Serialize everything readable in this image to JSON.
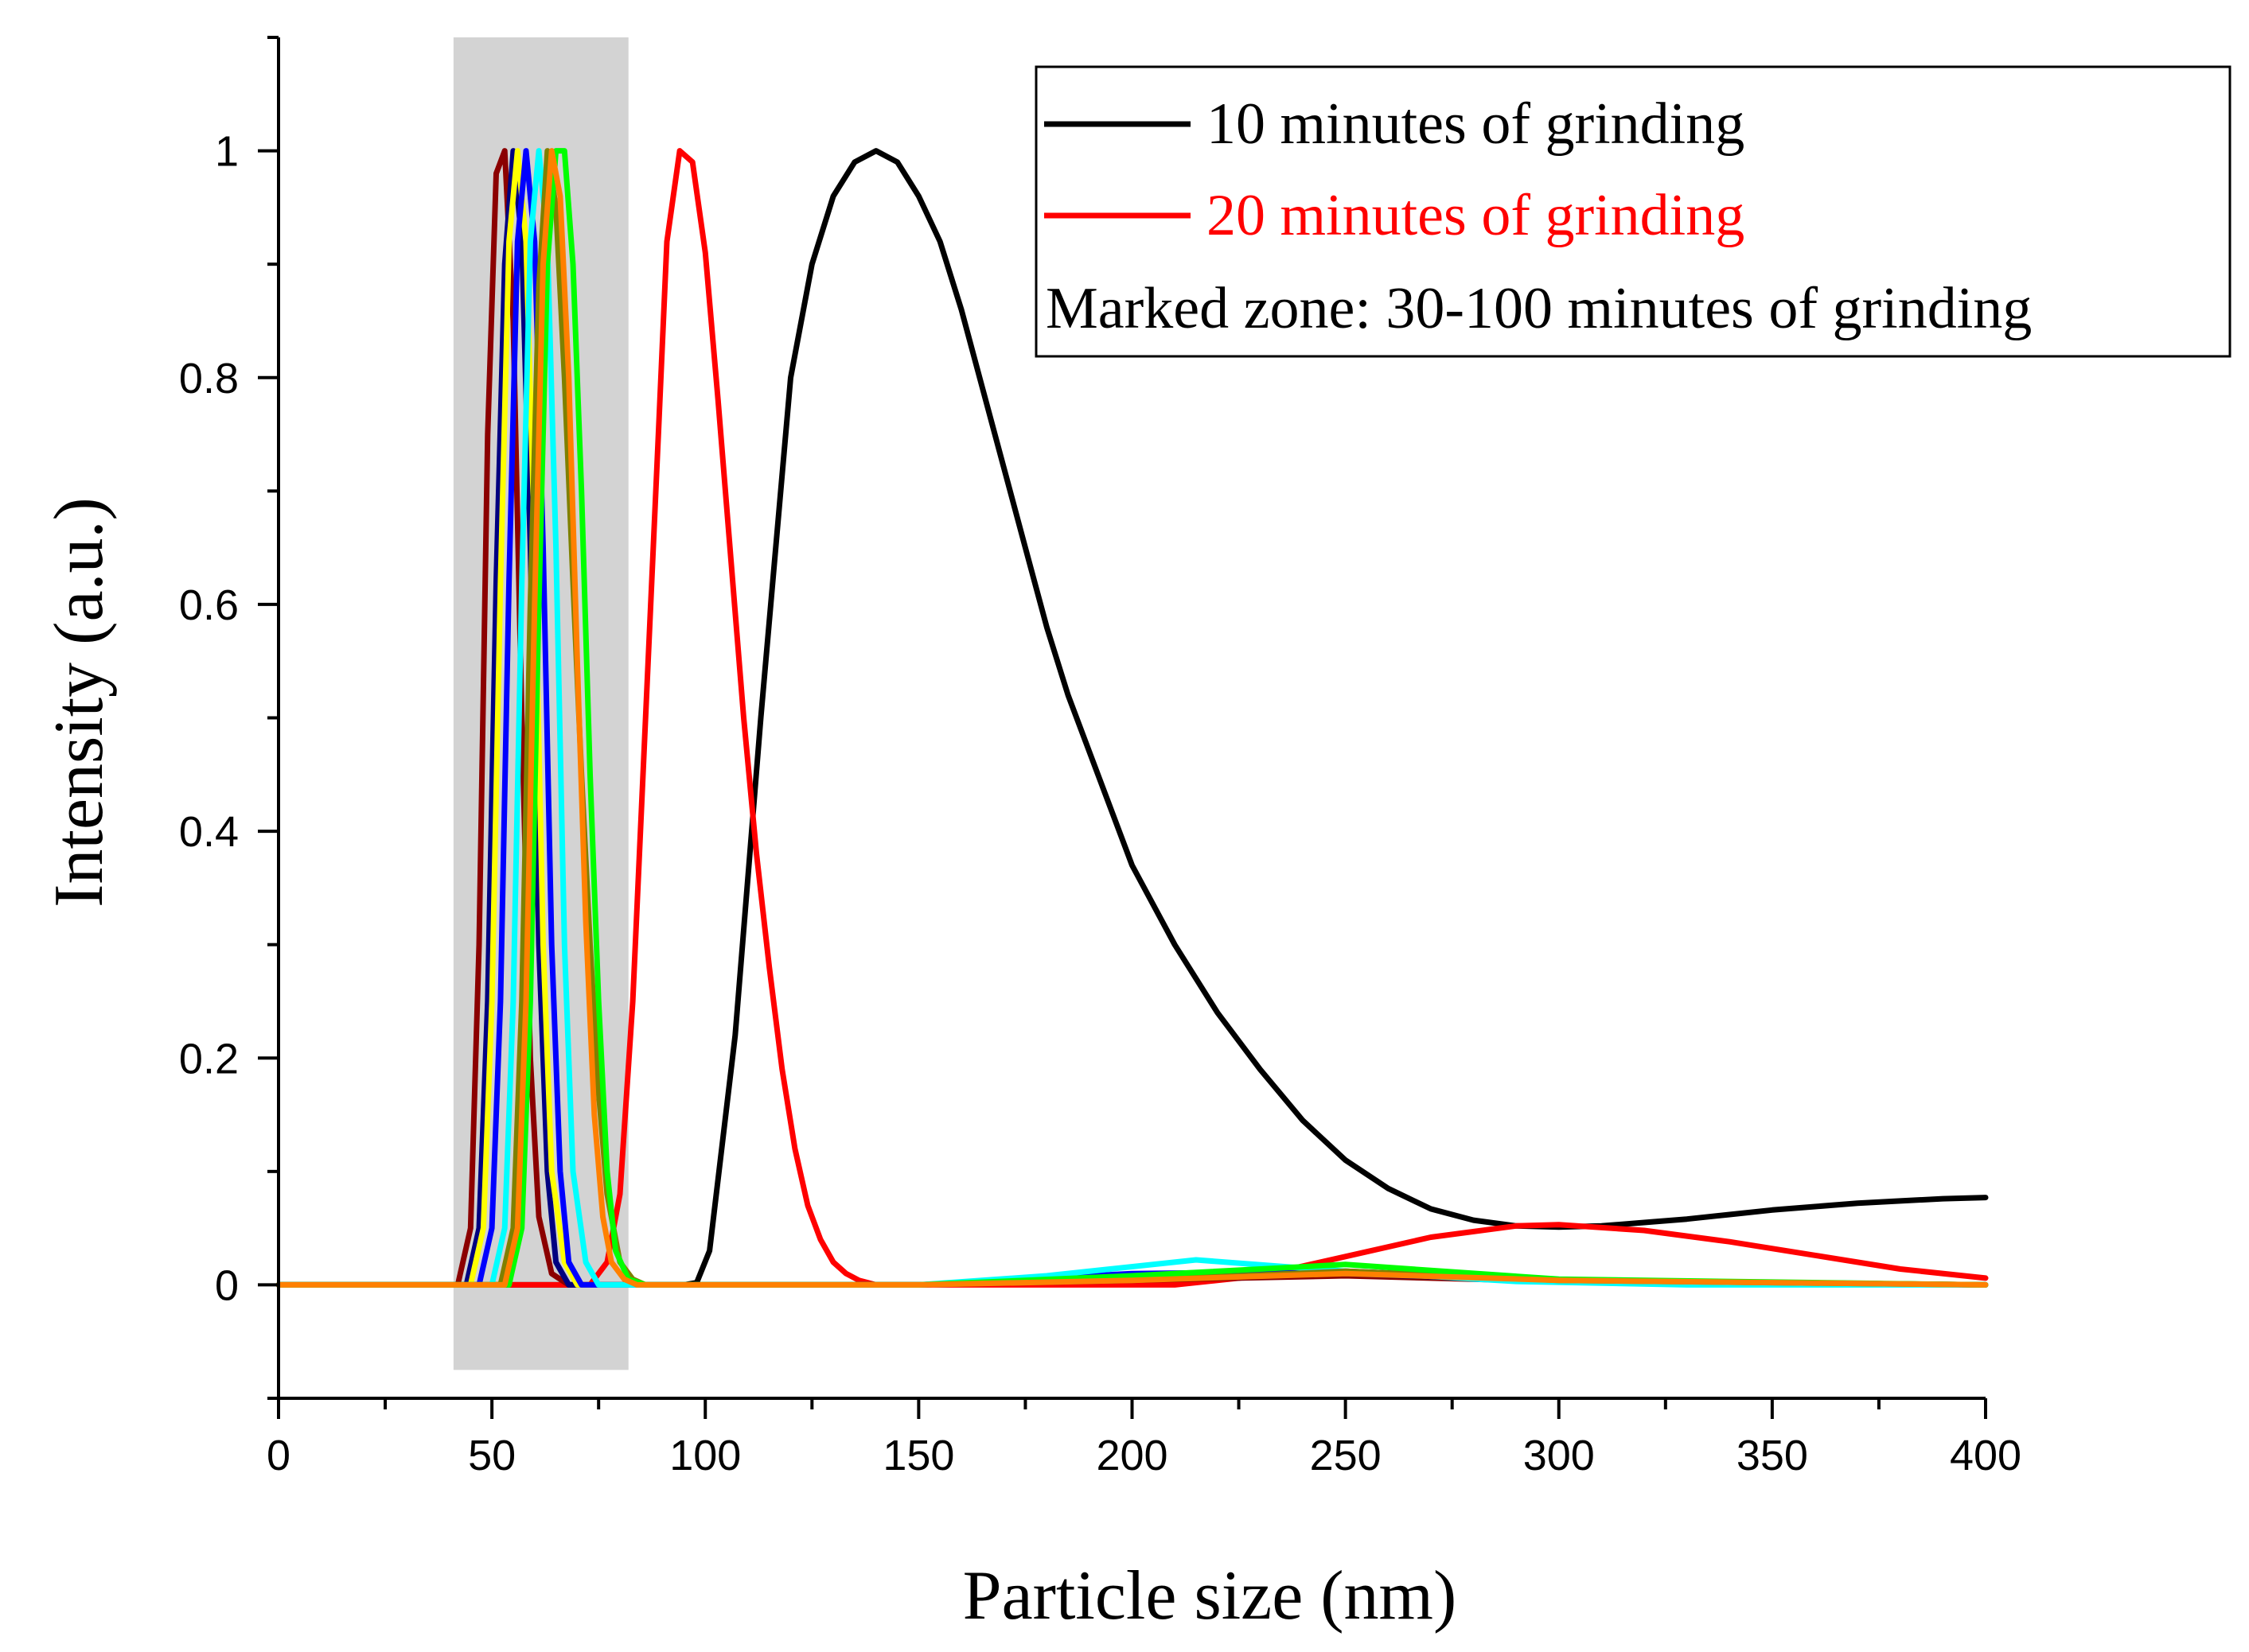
{
  "chart_data": {
    "type": "line",
    "xlabel": "Particle size (nm)",
    "ylabel": "Intensity (a.u.)",
    "xlim": [
      0,
      400
    ],
    "ylim": [
      -0.1,
      1.1
    ],
    "x_ticks": [
      0,
      50,
      100,
      150,
      200,
      250,
      300,
      350,
      400
    ],
    "x_tick_labels": [
      "0",
      "50",
      "100",
      "150",
      "200",
      "250",
      "300",
      "350",
      "400"
    ],
    "y_ticks": [
      0,
      0.2,
      0.4,
      0.6,
      0.8,
      1
    ],
    "y_tick_labels": [
      "0",
      "0.2",
      "0.4",
      "0.6",
      "0.8",
      "1"
    ],
    "marked_zone": {
      "x_range": [
        41,
        82
      ],
      "y_range": [
        -0.075,
        1.1
      ],
      "color": "#d3d3d3"
    },
    "legend": {
      "position": "top-right",
      "entries": [
        {
          "label": "10 minutes of grinding",
          "color": "#000000",
          "has_line": true
        },
        {
          "label": "20 minutes of grinding",
          "color": "#ff0000",
          "has_line": true
        },
        {
          "label": "Marked zone: 30-100 minutes of grinding",
          "color": "#000000",
          "has_line": false
        }
      ]
    },
    "series": [
      {
        "name": "10 minutes of grinding",
        "color": "#000000",
        "x": [
          0,
          90,
          95,
          98,
          101,
          107,
          113,
          120,
          125,
          130,
          135,
          140,
          145,
          150,
          155,
          160,
          165,
          170,
          175,
          180,
          185,
          190,
          200,
          210,
          220,
          230,
          240,
          250,
          260,
          270,
          280,
          290,
          300,
          310,
          320,
          330,
          340,
          350,
          360,
          370,
          380,
          390,
          400
        ],
        "y": [
          0,
          0,
          0,
          0.002,
          0.03,
          0.22,
          0.5,
          0.8,
          0.9,
          0.96,
          0.99,
          1.0,
          0.99,
          0.96,
          0.92,
          0.86,
          0.79,
          0.72,
          0.65,
          0.58,
          0.52,
          0.47,
          0.37,
          0.3,
          0.24,
          0.19,
          0.145,
          0.11,
          0.085,
          0.067,
          0.057,
          0.052,
          0.051,
          0.052,
          0.055,
          0.058,
          0.062,
          0.066,
          0.069,
          0.072,
          0.074,
          0.076,
          0.077
        ]
      },
      {
        "name": "20 minutes of grinding",
        "color": "#ff0000",
        "x": [
          0,
          73,
          77,
          80,
          83,
          86,
          89,
          91,
          94,
          97,
          100,
          103,
          106,
          109,
          112,
          115,
          118,
          121,
          124,
          127,
          130,
          133,
          136,
          140,
          150,
          170,
          190,
          210,
          230,
          250,
          270,
          290,
          300,
          320,
          340,
          360,
          380,
          400
        ],
        "y": [
          0,
          0,
          0.02,
          0.08,
          0.25,
          0.5,
          0.75,
          0.92,
          1.0,
          0.99,
          0.91,
          0.78,
          0.64,
          0.5,
          0.38,
          0.28,
          0.19,
          0.12,
          0.07,
          0.04,
          0.02,
          0.01,
          0.004,
          0,
          0,
          0,
          0,
          0,
          0.008,
          0.025,
          0.042,
          0.052,
          0.053,
          0.048,
          0.038,
          0.026,
          0.014,
          0.006
        ]
      },
      {
        "name": "30-100 min (maroon)",
        "color": "#8b0000",
        "x": [
          0,
          42,
          45,
          47,
          49,
          51,
          53,
          55,
          57,
          59,
          61,
          64,
          68,
          80,
          150,
          200,
          250,
          300,
          400
        ],
        "y": [
          0,
          0,
          0.05,
          0.3,
          0.75,
          0.98,
          1.0,
          0.85,
          0.5,
          0.2,
          0.06,
          0.01,
          0,
          0,
          0,
          0.004,
          0.008,
          0.003,
          0
        ]
      },
      {
        "name": "30-100 min (navy)",
        "color": "#000080",
        "x": [
          0,
          44,
          47,
          49,
          51,
          53,
          55,
          57,
          59,
          61,
          63,
          65,
          68,
          72,
          150,
          200,
          250,
          300,
          400
        ],
        "y": [
          0,
          0,
          0.05,
          0.25,
          0.62,
          0.9,
          1.0,
          0.92,
          0.65,
          0.3,
          0.1,
          0.02,
          0,
          0,
          0,
          0.006,
          0.01,
          0.003,
          0
        ]
      },
      {
        "name": "30-100 min (yellow)",
        "color": "#ffff00",
        "x": [
          0,
          45,
          48,
          50,
          52,
          54,
          56,
          58,
          60,
          62,
          64,
          67,
          70,
          74,
          150,
          200,
          250,
          300,
          400
        ],
        "y": [
          0,
          0,
          0.05,
          0.25,
          0.62,
          0.92,
          1.0,
          0.92,
          0.65,
          0.3,
          0.1,
          0.02,
          0,
          0,
          0,
          0.006,
          0.012,
          0.004,
          0
        ]
      },
      {
        "name": "30-100 min (blue)",
        "color": "#0000ff",
        "x": [
          0,
          47,
          50,
          52,
          54,
          56,
          58,
          60,
          62,
          64,
          66,
          68,
          71,
          75,
          150,
          200,
          250,
          300,
          400
        ],
        "y": [
          0,
          0,
          0.05,
          0.25,
          0.62,
          0.92,
          1.0,
          0.92,
          0.65,
          0.3,
          0.1,
          0.02,
          0,
          0,
          0,
          0.01,
          0.012,
          0.004,
          0
        ]
      },
      {
        "name": "30-100 min (cyan)",
        "color": "#00ffff",
        "x": [
          0,
          50,
          53,
          55,
          57,
          59,
          61,
          63,
          65,
          67,
          69,
          72,
          75,
          79,
          150,
          180,
          215,
          250,
          290,
          330,
          400
        ],
        "y": [
          0,
          0,
          0.05,
          0.25,
          0.62,
          0.92,
          1.0,
          0.92,
          0.65,
          0.3,
          0.1,
          0.02,
          0,
          0,
          0,
          0.008,
          0.022,
          0.012,
          0.003,
          0,
          0
        ]
      },
      {
        "name": "30-100 min (olive)",
        "color": "#808000",
        "x": [
          0,
          52,
          55,
          57,
          59,
          61,
          63,
          65,
          67,
          69,
          71,
          73,
          75,
          77,
          80,
          83,
          86,
          150,
          200,
          250,
          300,
          400
        ],
        "y": [
          0,
          0,
          0.05,
          0.25,
          0.6,
          0.88,
          1.0,
          0.95,
          0.8,
          0.62,
          0.45,
          0.3,
          0.17,
          0.08,
          0.02,
          0.005,
          0,
          0,
          0.004,
          0.012,
          0.004,
          0
        ]
      },
      {
        "name": "30-100 min (green)",
        "color": "#00ff00",
        "x": [
          0,
          54,
          57,
          59,
          61,
          63,
          65,
          67,
          69,
          71,
          73,
          75,
          77,
          79,
          82,
          86,
          150,
          200,
          250,
          300,
          400
        ],
        "y": [
          0,
          0,
          0.05,
          0.25,
          0.6,
          0.9,
          1.0,
          1.0,
          0.9,
          0.7,
          0.45,
          0.25,
          0.1,
          0.03,
          0.005,
          0,
          0,
          0.008,
          0.018,
          0.005,
          0
        ]
      },
      {
        "name": "30-100 min (orange)",
        "color": "#ff8000",
        "x": [
          0,
          53,
          56,
          58,
          60,
          62,
          64,
          66,
          68,
          70,
          72,
          74,
          76,
          78,
          81,
          84,
          150,
          200,
          250,
          300,
          400
        ],
        "y": [
          0,
          0,
          0.05,
          0.25,
          0.6,
          0.9,
          1.0,
          0.96,
          0.8,
          0.55,
          0.32,
          0.15,
          0.06,
          0.02,
          0.005,
          0,
          0,
          0.004,
          0.01,
          0.004,
          0
        ]
      }
    ]
  }
}
